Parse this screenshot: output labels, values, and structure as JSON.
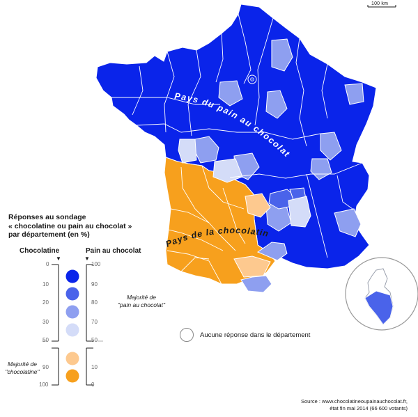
{
  "scale_label": "100 km",
  "map_labels": {
    "north": "Pays du pain au chocolat",
    "south": "Pays de la chocolatine"
  },
  "legend": {
    "title_line1": "Réponses au sondage",
    "title_line2": "« chocolatine ou pain au chocolat »",
    "title_line3": "par département (en %)",
    "left_header": "Chocolatine",
    "right_header": "Pain au chocolat",
    "arrow_glyph": "▼",
    "left_ticks": [
      "0",
      "10",
      "20",
      "30",
      "50",
      "90",
      "100"
    ],
    "right_ticks": [
      "100",
      "90",
      "80",
      "70",
      "50",
      "10",
      "0"
    ],
    "majority_pain_line1": "Majorité de",
    "majority_pain_line2": "\"pain au chocolat\"",
    "majority_choco_line1": "Majorité de",
    "majority_choco_line2": "\"chocolatine\"",
    "no_response": "Aucune réponse dans le département"
  },
  "colors": {
    "pain_90_100": "#0a24ea",
    "pain_80_90": "#4a63ea",
    "pain_70_80": "#8e9ff0",
    "pain_50_70": "#d4dcf8",
    "choco_50_90": "#fdc98f",
    "choco_90_100": "#f7a01d",
    "boundary": "#ffffff"
  },
  "source_line1": "Source : www.chocolatineoupainauchocolat.fr,",
  "source_line2": "état fin mai 2014 (66 600 votants)"
}
